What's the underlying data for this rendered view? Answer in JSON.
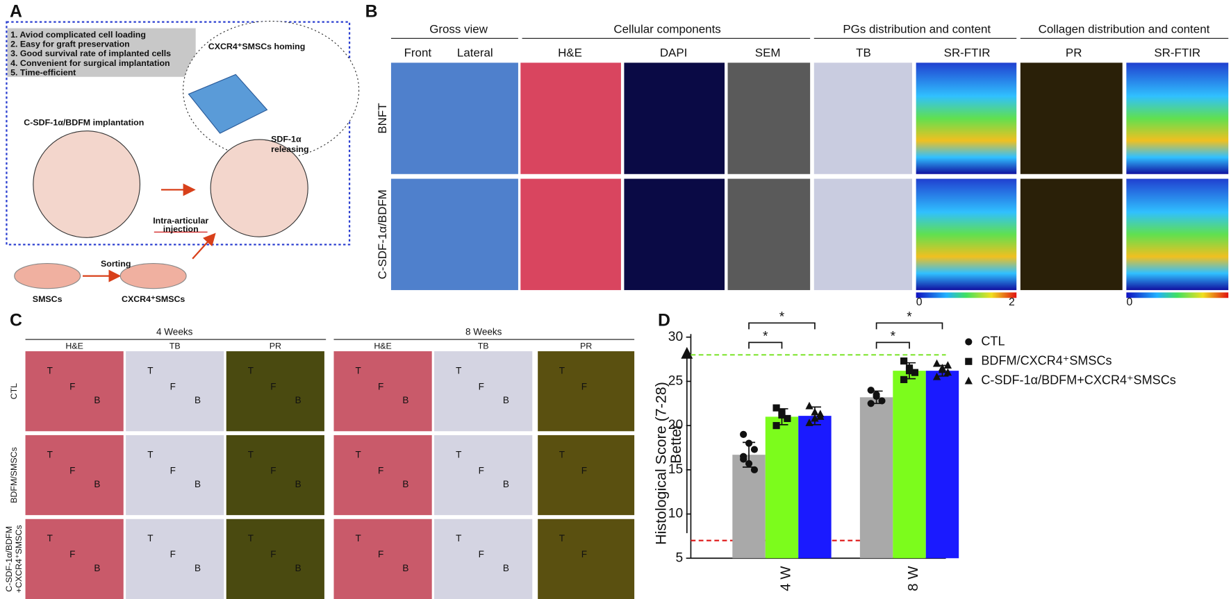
{
  "panel_a": {
    "label": "A",
    "advantages": [
      "1. Aviod complicated cell loading",
      "2. Easy for graft preservation",
      "3. Good survival rate of implanted cells",
      "4. Convenient for surgical implantation",
      "5. Time-efficient"
    ],
    "homing": "CXCR4⁺SMSCs homing",
    "releasing": [
      "SDF-1α",
      "releasing"
    ],
    "implantation": "C-SDF-1α/BDFM implantation",
    "injection": [
      "Intra-articular",
      "injection"
    ],
    "sorting": "Sorting",
    "dish1": "SMSCs",
    "dish2": "CXCR4⁺SMSCs"
  },
  "panel_b": {
    "label": "B",
    "groups": [
      "Gross view",
      "Cellular components",
      "PGs distribution and content",
      "Collagen distribution and content"
    ],
    "columns": [
      "Front",
      "Lateral",
      "H&E",
      "DAPI",
      "SEM",
      "TB",
      "SR-FTIR",
      "PR",
      "SR-FTIR"
    ],
    "rows": [
      "BNFT",
      "C-SDF-1α/BDFM"
    ],
    "colorbar_labels": [
      [
        "0",
        "2"
      ],
      [
        "0"
      ]
    ]
  },
  "panel_c": {
    "label": "C",
    "times": [
      "4 Weeks",
      "8 Weeks"
    ],
    "stains": [
      "H&E",
      "TB",
      "PR",
      "H&E",
      "TB",
      "PR"
    ],
    "rows": [
      [
        "CTL"
      ],
      [
        "BDFM/SMSCs"
      ],
      [
        "C-SDF-1α/BDFM",
        "+CXCR4⁺SMSCs"
      ]
    ],
    "cell_letters": [
      [
        "T",
        "F",
        "B"
      ],
      [
        "T",
        "F",
        "B"
      ],
      [
        "T",
        "F",
        "B"
      ],
      [
        "T",
        "F",
        "B"
      ],
      [
        "T",
        "F",
        "B"
      ],
      [
        "T",
        "F"
      ],
      [
        "T",
        "F",
        "B"
      ],
      [
        "T",
        "F",
        "B"
      ],
      [
        "T",
        "F",
        "B"
      ],
      [
        "T",
        "F",
        "B"
      ],
      [
        "T",
        "F",
        "B"
      ],
      [
        "T",
        "F"
      ],
      [
        "T",
        "F",
        "B"
      ],
      [
        "T",
        "F",
        "B"
      ],
      [
        "T",
        "F",
        "B"
      ],
      [
        "T",
        "F",
        "B"
      ],
      [
        "T",
        "F",
        "B"
      ],
      [
        "T",
        "F"
      ]
    ]
  },
  "chart_data": {
    "type": "bar",
    "label": "D",
    "y_label": "Histological Score (7-28)",
    "y_note": "Better",
    "categories": [
      "4 W",
      "8 W"
    ],
    "ylim": [
      5,
      30
    ],
    "yticks": [
      5,
      10,
      15,
      20,
      25,
      30
    ],
    "series": [
      {
        "name": "CTL",
        "color": "#a9a9a9",
        "marker": "circle",
        "values": [
          16.7,
          23.2
        ],
        "errors": [
          1.4,
          0.7
        ],
        "points": [
          [
            19,
            18,
            17.3,
            16.5,
            15.7,
            15,
            16.2
          ],
          [
            24,
            23.3,
            22.8,
            22.5,
            23.5
          ]
        ]
      },
      {
        "name": "BDFM/CXCR4⁺SMSCs",
        "color": "#7cfc1c",
        "marker": "square",
        "values": [
          21,
          26.2
        ],
        "errors": [
          0.9,
          0.9
        ],
        "points": [
          [
            22,
            21.5,
            20.8,
            20,
            21.2
          ],
          [
            27.3,
            26.5,
            26,
            25.2,
            26.2
          ]
        ]
      },
      {
        "name": "C-SDF-1α/BDFM+CXCR4⁺SMSCs",
        "color": "#1a1aff",
        "marker": "triangle",
        "values": [
          21.1,
          26.2
        ],
        "errors": [
          1.0,
          0.6
        ],
        "points": [
          [
            22.2,
            21.5,
            21,
            20.3,
            20.8,
            21.3
          ],
          [
            27,
            26.5,
            26,
            25.5,
            26.3,
            26.8
          ]
        ]
      }
    ],
    "ref_lines": [
      {
        "value": 28,
        "color": "#86e63c"
      },
      {
        "value": 7,
        "color": "#e02020"
      }
    ],
    "significance": [
      {
        "label": "*",
        "category": 0,
        "from": 0,
        "to": 2,
        "level": 31.6
      },
      {
        "label": "*",
        "category": 0,
        "from": 0,
        "to": 1,
        "level": 29.4
      },
      {
        "label": "*",
        "category": 1,
        "from": 0,
        "to": 2,
        "level": 31.6
      },
      {
        "label": "*",
        "category": 1,
        "from": 0,
        "to": 1,
        "level": 29.4
      }
    ]
  }
}
